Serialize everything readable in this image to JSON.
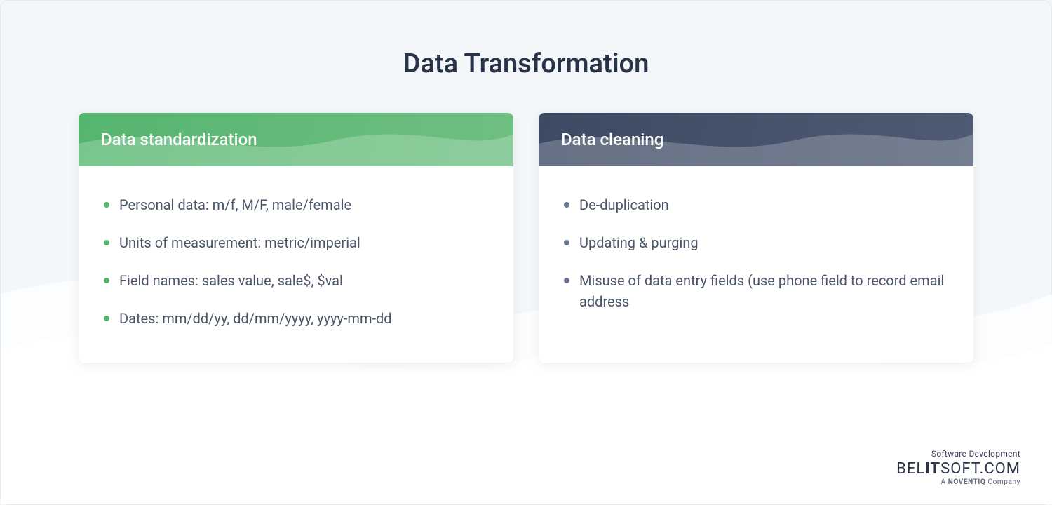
{
  "page": {
    "title": "Data Transformation",
    "background_color": "#f4f7fa",
    "border_color": "#e5e9ee",
    "title_color": "#2a3448",
    "title_fontsize": 38,
    "wave_color": "#ffffff"
  },
  "cards": [
    {
      "title": "Data standardization",
      "header_gradient_from": "#55b56f",
      "header_gradient_to": "#6fbf82",
      "bullet_color": "#55b56f",
      "items": [
        "Personal data: m/f, M/F, male/female",
        "Units of measurement: metric/imperial",
        "Field names: sales value, sale$, $val",
        "Dates: mm/dd/yy, dd/mm/yyyy, yyyy-mm-dd"
      ]
    },
    {
      "title": "Data cleaning",
      "header_gradient_from": "#3d4a63",
      "header_gradient_to": "#4f5b73",
      "bullet_color": "#6b7690",
      "items": [
        "De-duplication",
        "Updating & purging",
        "Misuse of data entry fields (use phone field to record email address"
      ]
    }
  ],
  "card_style": {
    "background": "#ffffff",
    "shadow": "0 4px 16px rgba(40,50,70,0.08)",
    "border_radius": 8,
    "header_text_color": "#ffffff",
    "header_fontsize": 24,
    "item_text_color": "#4a5568",
    "item_fontsize": 20
  },
  "footer": {
    "line1": "Software Development",
    "brand_part1": "BEL",
    "brand_part2": "IT",
    "brand_part3": "SOFT.COM",
    "sub_prefix": "A ",
    "sub_brand": "NOVENTIQ",
    "sub_suffix": " Company",
    "text_color": "#2a3448"
  }
}
